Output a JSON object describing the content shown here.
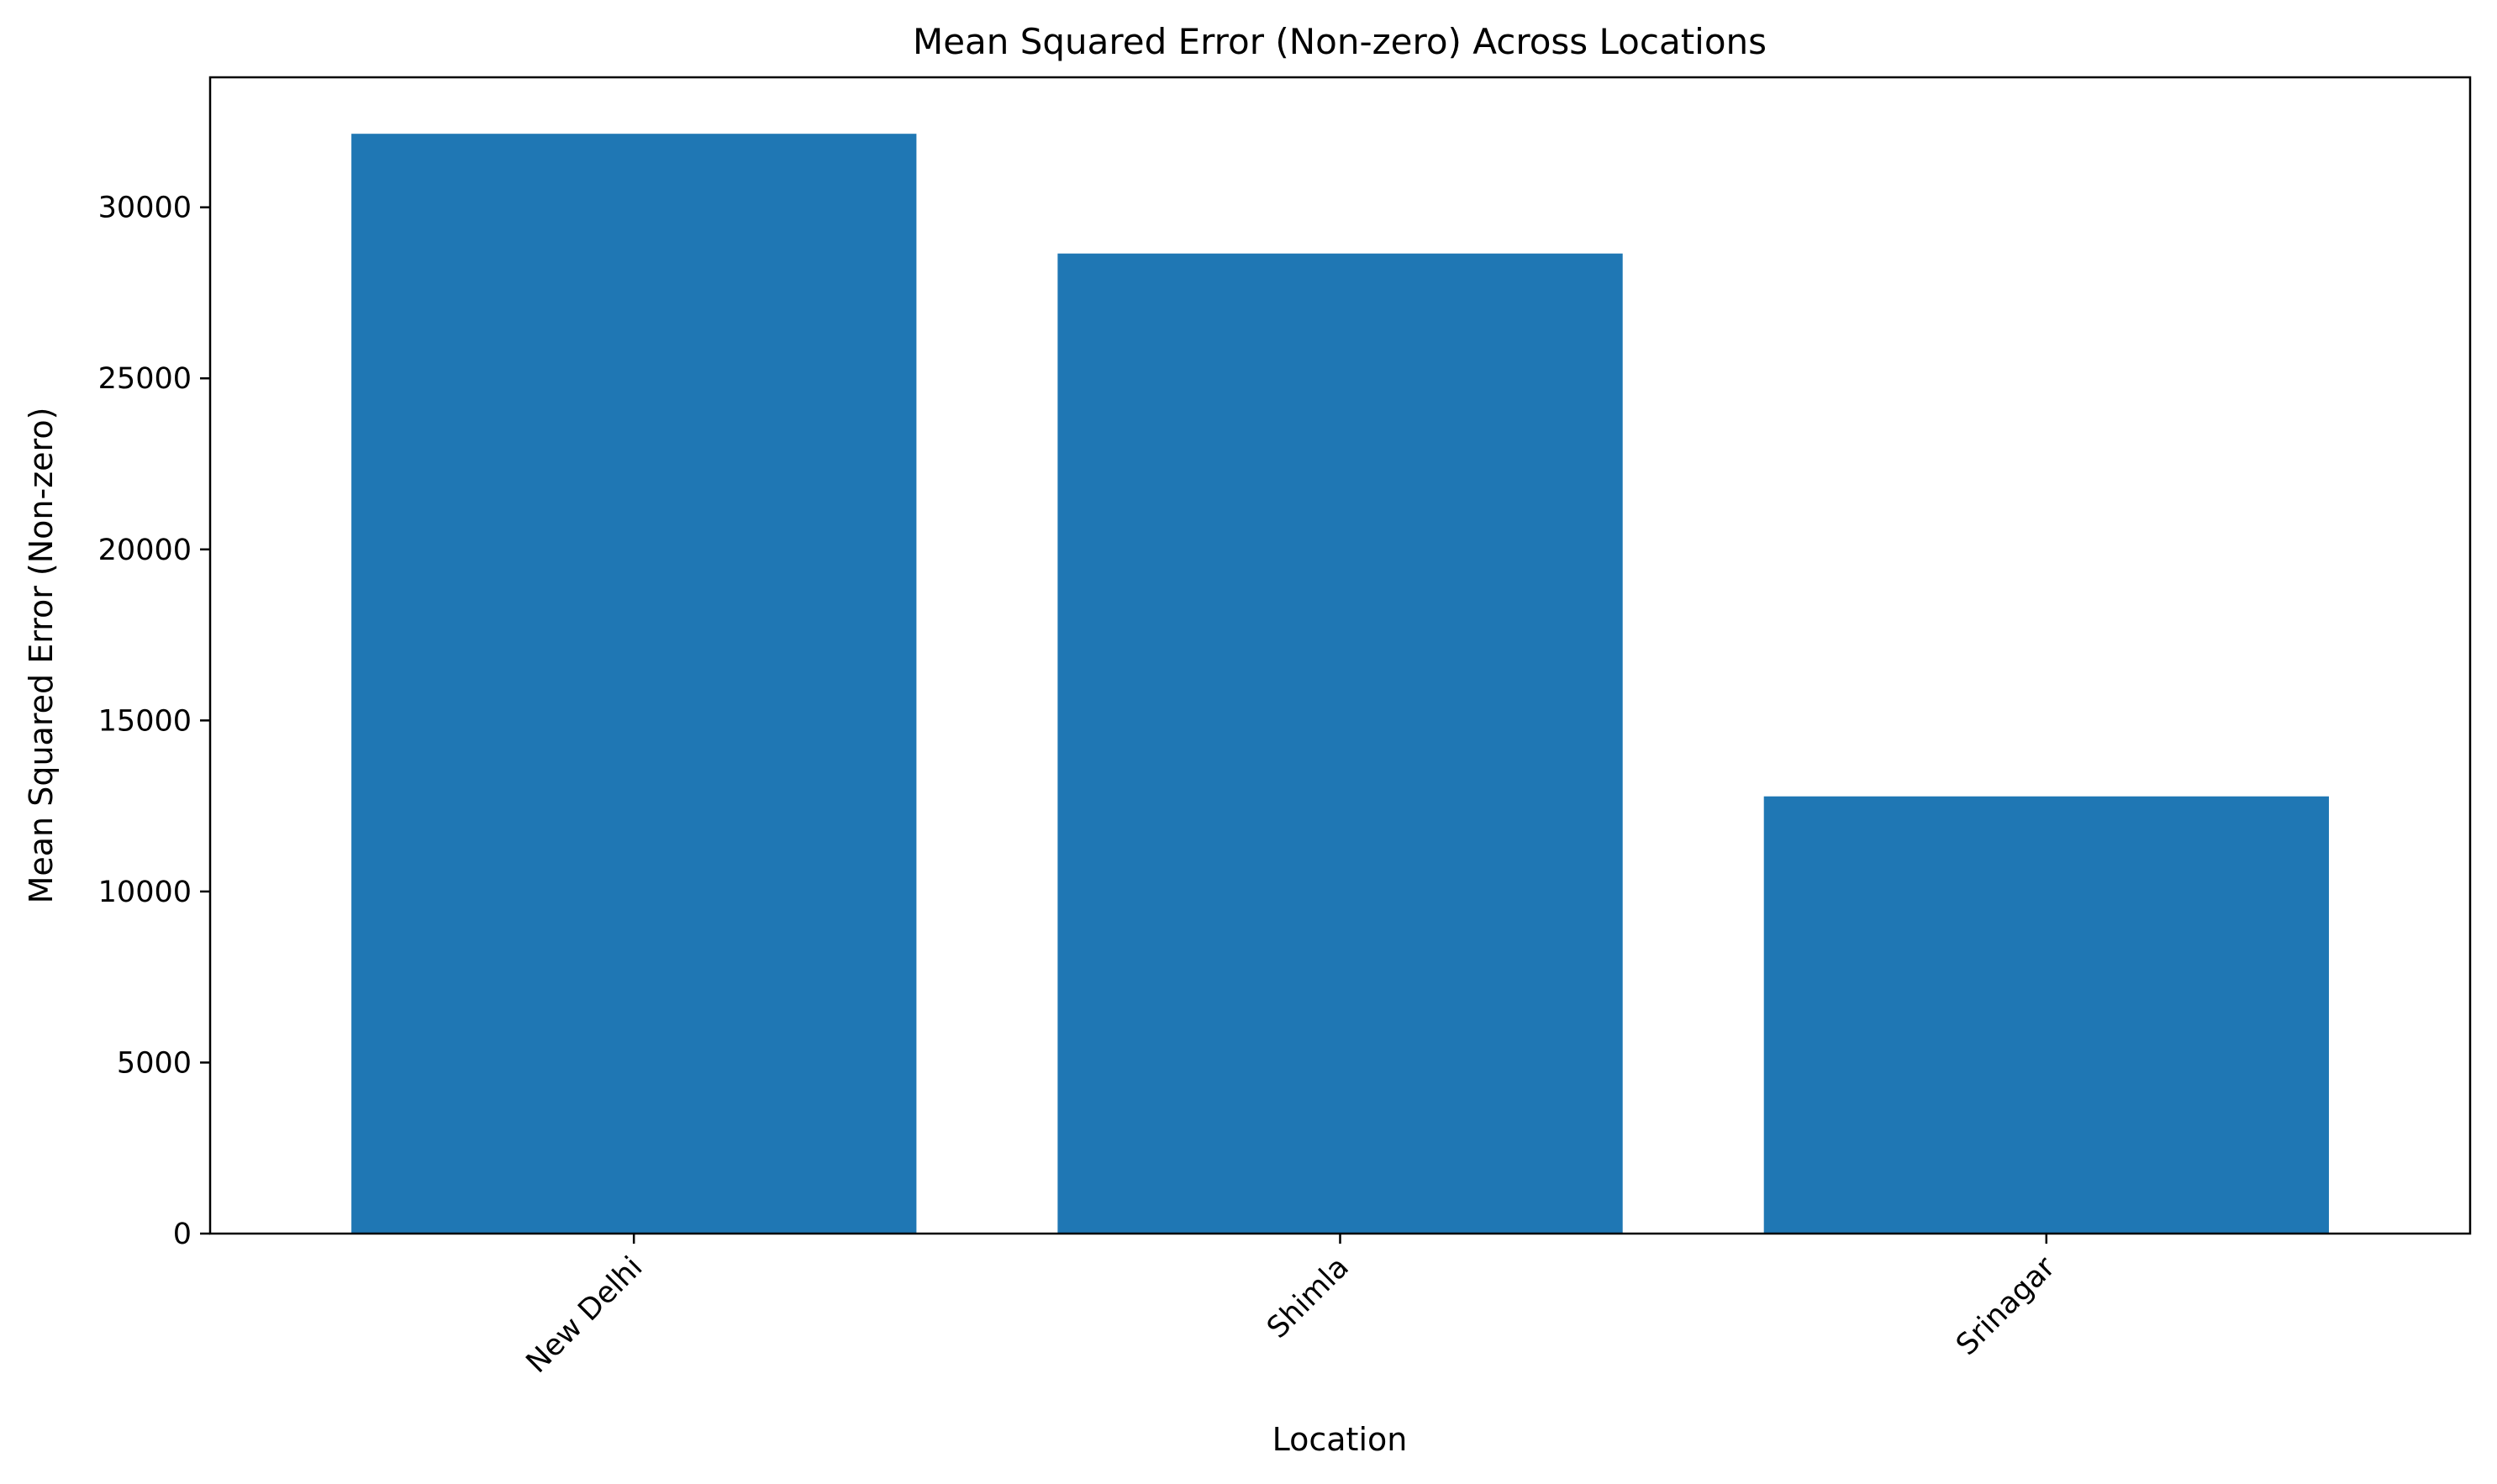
{
  "chart_data": {
    "type": "bar",
    "title": "Mean Squared Error (Non-zero) Across Locations",
    "xlabel": "Location",
    "ylabel": "Mean Squared Error (Non-zero)",
    "categories": [
      "New Delhi",
      "Shimla",
      "Srinagar"
    ],
    "values": [
      32150,
      28650,
      12780
    ],
    "ylim": [
      0,
      33800
    ],
    "yticks": [
      0,
      5000,
      10000,
      15000,
      20000,
      25000,
      30000
    ],
    "ytick_labels": [
      "0",
      "5000",
      "10000",
      "15000",
      "20000",
      "25000",
      "30000"
    ],
    "bar_color": "#1f77b4",
    "grid": false,
    "legend": "none",
    "xtick_rotation_deg": -45
  }
}
